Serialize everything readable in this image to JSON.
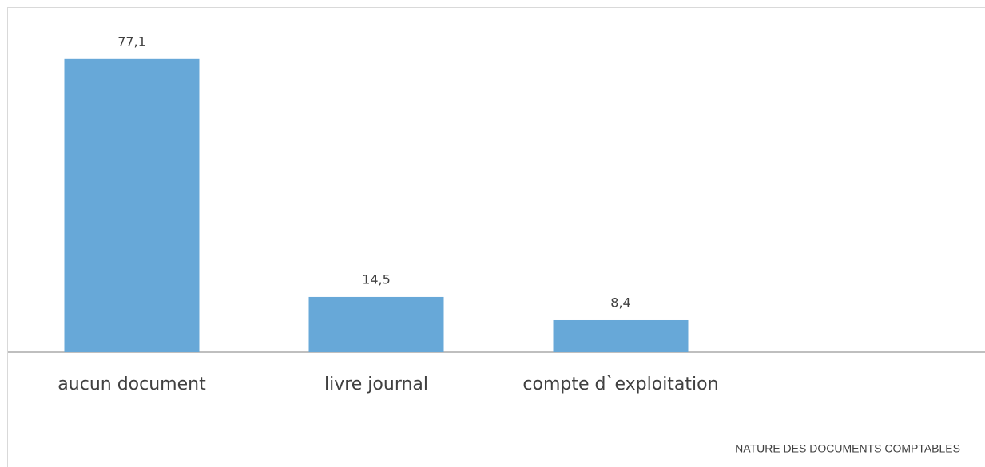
{
  "chart_data": {
    "type": "bar",
    "x_label": "NATURE  DES DOCUMENTS COMPTABLES",
    "categories": [
      "aucun document",
      "livre journal",
      "compte d`exploitation"
    ],
    "values": [
      77.1,
      14.5,
      8.4
    ],
    "value_labels": [
      "77,1",
      "14,5",
      "8,4"
    ],
    "color": "#67a8d8",
    "ylim": [
      0,
      80
    ]
  }
}
